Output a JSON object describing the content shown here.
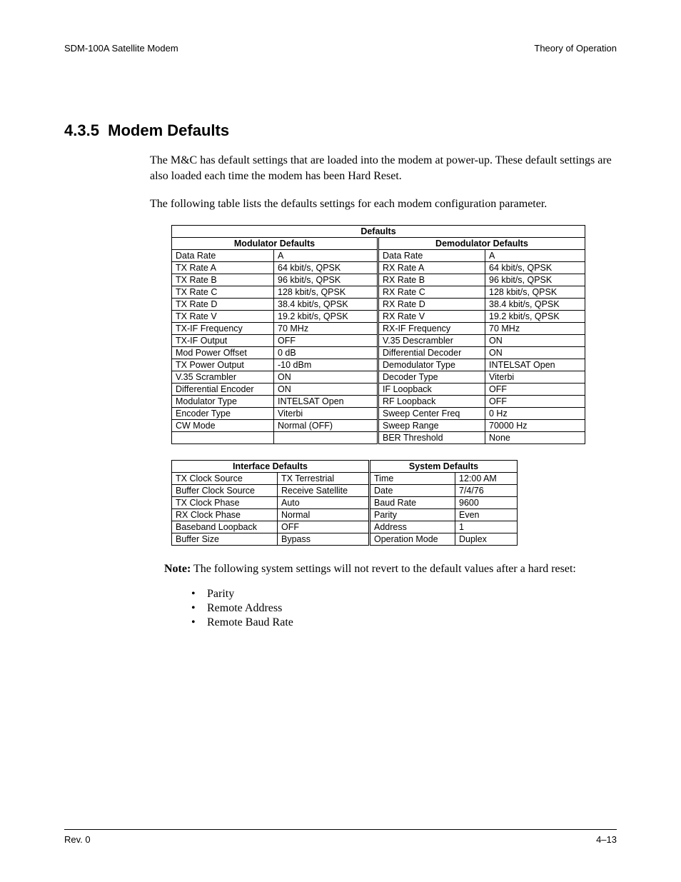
{
  "header": {
    "left": "SDM-100A Satellite Modem",
    "right": "Theory of Operation"
  },
  "section": {
    "number": "4.3.5",
    "title": "Modem Defaults"
  },
  "para1": "The M&C has default settings that are loaded into the modem at power-up. These default settings are also loaded each time the modem has been Hard Reset.",
  "para2": "The following table lists the defaults settings for each modem configuration parameter.",
  "table1": {
    "title": "Defaults",
    "left_header": "Modulator Defaults",
    "right_header": "Demodulator Defaults",
    "rows": [
      {
        "l1": "Data Rate",
        "l2": "A",
        "r1": "Data Rate",
        "r2": "A"
      },
      {
        "l1": "TX Rate A",
        "l2": "64 kbit/s, QPSK",
        "r1": "RX Rate A",
        "r2": "64 kbit/s, QPSK"
      },
      {
        "l1": "TX Rate B",
        "l2": "96 kbit/s, QPSK",
        "r1": "RX Rate B",
        "r2": "96 kbit/s, QPSK"
      },
      {
        "l1": "TX Rate C",
        "l2": "128 kbit/s, QPSK",
        "r1": "RX Rate C",
        "r2": "128 kbit/s, QPSK"
      },
      {
        "l1": "TX Rate D",
        "l2": "38.4 kbit/s, QPSK",
        "r1": "RX Rate D",
        "r2": "38.4 kbit/s, QPSK"
      },
      {
        "l1": "TX Rate V",
        "l2": "19.2 kbit/s, QPSK",
        "r1": "RX Rate V",
        "r2": "19.2 kbit/s, QPSK"
      },
      {
        "l1": "TX-IF Frequency",
        "l2": "70 MHz",
        "r1": "RX-IF Frequency",
        "r2": "70 MHz"
      },
      {
        "l1": "TX-IF Output",
        "l2": "OFF",
        "r1": "V.35 Descrambler",
        "r2": "ON"
      },
      {
        "l1": "Mod Power Offset",
        "l2": "0 dB",
        "r1": "Differential Decoder",
        "r2": "ON"
      },
      {
        "l1": "TX Power Output",
        "l2": "-10 dBm",
        "r1": "Demodulator Type",
        "r2": "INTELSAT Open"
      },
      {
        "l1": "V.35 Scrambler",
        "l2": "ON",
        "r1": "Decoder Type",
        "r2": "Viterbi"
      },
      {
        "l1": "Differential Encoder",
        "l2": "ON",
        "r1": "IF Loopback",
        "r2": "OFF"
      },
      {
        "l1": "Modulator Type",
        "l2": "INTELSAT Open",
        "r1": "RF Loopback",
        "r2": "OFF"
      },
      {
        "l1": "Encoder Type",
        "l2": "Viterbi",
        "r1": "Sweep Center Freq",
        "r2": "0 Hz"
      },
      {
        "l1": "CW Mode",
        "l2": "Normal (OFF)",
        "r1": "Sweep Range",
        "r2": "70000 Hz"
      },
      {
        "l1": "",
        "l2": "",
        "r1": "BER Threshold",
        "r2": "None"
      }
    ]
  },
  "table2": {
    "left_header": "Interface Defaults",
    "right_header": "System Defaults",
    "rows": [
      {
        "l1": "TX Clock Source",
        "l2": "TX Terrestrial",
        "r1": "Time",
        "r2": "12:00 AM"
      },
      {
        "l1": "Buffer Clock Source",
        "l2": "Receive Satellite",
        "r1": "Date",
        "r2": "7/4/76"
      },
      {
        "l1": "TX Clock Phase",
        "l2": "Auto",
        "r1": "Baud Rate",
        "r2": "9600"
      },
      {
        "l1": "RX Clock Phase",
        "l2": "Normal",
        "r1": "Parity",
        "r2": "Even"
      },
      {
        "l1": "Baseband Loopback",
        "l2": "OFF",
        "r1": "Address",
        "r2": "1"
      },
      {
        "l1": "Buffer Size",
        "l2": "Bypass",
        "r1": "Operation Mode",
        "r2": "Duplex"
      }
    ]
  },
  "note": {
    "label": "Note:",
    "text": " The following system settings will not revert to the default values after a hard reset:"
  },
  "bullets": [
    "Parity",
    "Remote Address",
    "Remote Baud Rate"
  ],
  "footer": {
    "left": "Rev. 0",
    "right": "4–13"
  }
}
